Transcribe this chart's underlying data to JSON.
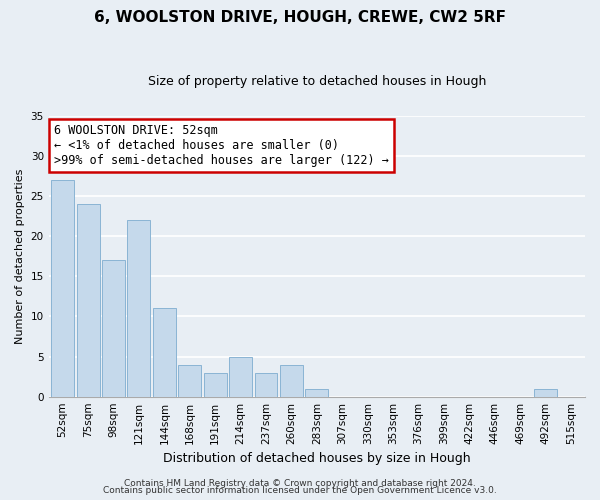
{
  "title": "6, WOOLSTON DRIVE, HOUGH, CREWE, CW2 5RF",
  "subtitle": "Size of property relative to detached houses in Hough",
  "xlabel": "Distribution of detached houses by size in Hough",
  "ylabel": "Number of detached properties",
  "bar_color": "#c5d9eb",
  "bar_edge_color": "#8ab4d4",
  "bins": [
    "52sqm",
    "75sqm",
    "98sqm",
    "121sqm",
    "144sqm",
    "168sqm",
    "191sqm",
    "214sqm",
    "237sqm",
    "260sqm",
    "283sqm",
    "307sqm",
    "330sqm",
    "353sqm",
    "376sqm",
    "399sqm",
    "422sqm",
    "446sqm",
    "469sqm",
    "492sqm",
    "515sqm"
  ],
  "values": [
    27,
    24,
    17,
    22,
    11,
    4,
    3,
    5,
    3,
    4,
    1,
    0,
    0,
    0,
    0,
    0,
    0,
    0,
    0,
    1,
    0
  ],
  "ylim": [
    0,
    35
  ],
  "yticks": [
    0,
    5,
    10,
    15,
    20,
    25,
    30,
    35
  ],
  "annotation_title": "6 WOOLSTON DRIVE: 52sqm",
  "annotation_line1": "← <1% of detached houses are smaller (0)",
  "annotation_line2": ">99% of semi-detached houses are larger (122) →",
  "annotation_box_color": "#ffffff",
  "annotation_box_edge": "#cc0000",
  "footer1": "Contains HM Land Registry data © Crown copyright and database right 2024.",
  "footer2": "Contains public sector information licensed under the Open Government Licence v3.0.",
  "background_color": "#e8eef4",
  "grid_color": "#ffffff",
  "title_fontsize": 11,
  "subtitle_fontsize": 9,
  "xlabel_fontsize": 9,
  "ylabel_fontsize": 8,
  "tick_fontsize": 7.5,
  "footer_fontsize": 6.5,
  "annotation_fontsize": 8.5
}
